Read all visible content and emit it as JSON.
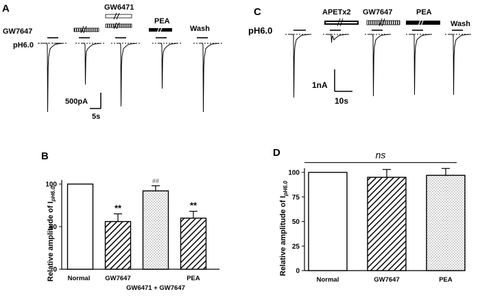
{
  "panels": {
    "A": {
      "letter": "A",
      "conditions": [
        "GW7647",
        "GW6471",
        "PEA",
        "Wash"
      ],
      "ph_label": "pH6.0",
      "scale_current": "500pA",
      "scale_time": "5s"
    },
    "C": {
      "letter": "C",
      "conditions": [
        "APETx2",
        "GW7647",
        "PEA",
        "Wash"
      ],
      "ph_label": "pH6.0",
      "scale_current": "1nA",
      "scale_time": "10s"
    },
    "B": {
      "letter": "B",
      "ylabel_main": "Relative amplitude of I",
      "ylabel_sub": "pH6.0",
      "sig_stars": "**",
      "sig_hash": "##"
    },
    "D": {
      "letter": "D",
      "ylabel_main": "Relative amplitude of I",
      "ylabel_sub": "pH6.0",
      "ns_label": "ns"
    }
  },
  "chart_data": [
    {
      "panel": "B",
      "type": "bar",
      "categories": [
        "Normal",
        "GW7647",
        "GW6471 + GW7647",
        "PEA"
      ],
      "values": [
        100,
        56,
        92,
        60
      ],
      "errors": [
        0,
        9,
        6,
        8
      ],
      "significance": [
        "",
        "**",
        "##",
        "**"
      ],
      "ylim": [
        0,
        100
      ],
      "yticks": [
        0,
        50,
        100
      ],
      "xlabel": "",
      "ylabel": "Relative amplitude of I pH6.0"
    },
    {
      "panel": "D",
      "type": "bar",
      "categories": [
        "Normal",
        "GW7647",
        "PEA"
      ],
      "values": [
        100,
        95,
        97
      ],
      "errors": [
        0,
        8,
        7
      ],
      "ylim": [
        0,
        100
      ],
      "yticks": [
        0,
        25,
        50,
        75,
        100
      ],
      "xlabel": "",
      "ylabel": "Relative amplitude of I pH6.0",
      "annotation": "ns"
    }
  ]
}
